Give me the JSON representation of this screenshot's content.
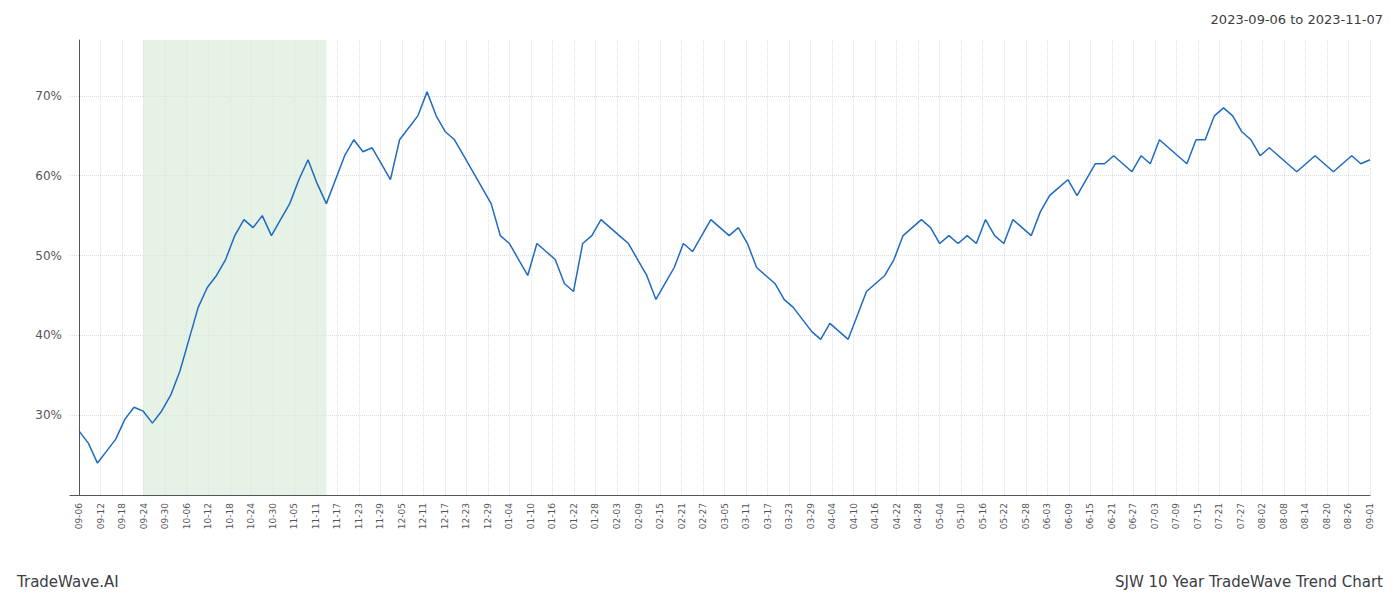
{
  "chart_data": {
    "type": "line",
    "title": "SJW 10 Year TradeWave Trend Chart",
    "subtitle": "2023-09-06 to 2023-11-07",
    "annotations": [
      "TradeWave.AI"
    ],
    "color": "#1f6bbf",
    "highlight_range": [
      7,
      27
    ],
    "highlight_color": "#d6ead6",
    "grid": true,
    "line_style": "solid",
    "ylim": [
      20,
      77
    ],
    "yticks": [
      {
        "value": 30,
        "label": "30%"
      },
      {
        "value": 40,
        "label": "40%"
      },
      {
        "value": 50,
        "label": "50%"
      },
      {
        "value": 60,
        "label": "60%"
      },
      {
        "value": 70,
        "label": "70%"
      }
    ],
    "xlim": [
      -1,
      141
    ],
    "xticks": [
      {
        "value": 0,
        "label": "09-06"
      },
      {
        "value": 2.35,
        "label": "09-12"
      },
      {
        "value": 4.7,
        "label": "09-18"
      },
      {
        "value": 7.05,
        "label": "09-24"
      },
      {
        "value": 9.4,
        "label": "09-30"
      },
      {
        "value": 11.75,
        "label": "10-06"
      },
      {
        "value": 14.1,
        "label": "10-12"
      },
      {
        "value": 16.45,
        "label": "10-18"
      },
      {
        "value": 18.8,
        "label": "10-24"
      },
      {
        "value": 21.15,
        "label": "10-30"
      },
      {
        "value": 23.5,
        "label": "11-05"
      },
      {
        "value": 25.85,
        "label": "11-11"
      },
      {
        "value": 28.2,
        "label": "11-17"
      },
      {
        "value": 30.55,
        "label": "11-23"
      },
      {
        "value": 32.9,
        "label": "11-29"
      },
      {
        "value": 35.25,
        "label": "12-05"
      },
      {
        "value": 37.6,
        "label": "12-11"
      },
      {
        "value": 39.95,
        "label": "12-17"
      },
      {
        "value": 42.3,
        "label": "12-23"
      },
      {
        "value": 44.65,
        "label": "12-29"
      },
      {
        "value": 47,
        "label": "01-04"
      },
      {
        "value": 49.35,
        "label": "01-10"
      },
      {
        "value": 51.7,
        "label": "01-16"
      },
      {
        "value": 54.05,
        "label": "01-22"
      },
      {
        "value": 56.4,
        "label": "01-28"
      },
      {
        "value": 58.75,
        "label": "02-03"
      },
      {
        "value": 61.1,
        "label": "02-09"
      },
      {
        "value": 63.45,
        "label": "02-15"
      },
      {
        "value": 65.8,
        "label": "02-21"
      },
      {
        "value": 68.15,
        "label": "02-27"
      },
      {
        "value": 70.5,
        "label": "03-05"
      },
      {
        "value": 72.85,
        "label": "03-11"
      },
      {
        "value": 75.2,
        "label": "03-17"
      },
      {
        "value": 77.55,
        "label": "03-23"
      },
      {
        "value": 79.9,
        "label": "03-29"
      },
      {
        "value": 82.25,
        "label": "04-04"
      },
      {
        "value": 84.6,
        "label": "04-10"
      },
      {
        "value": 86.95,
        "label": "04-16"
      },
      {
        "value": 89.3,
        "label": "04-22"
      },
      {
        "value": 91.65,
        "label": "04-28"
      },
      {
        "value": 94,
        "label": "05-04"
      },
      {
        "value": 96.35,
        "label": "05-10"
      },
      {
        "value": 98.7,
        "label": "05-16"
      },
      {
        "value": 101.05,
        "label": "05-22"
      },
      {
        "value": 103.4,
        "label": "05-28"
      },
      {
        "value": 105.75,
        "label": "06-03"
      },
      {
        "value": 108.1,
        "label": "06-09"
      },
      {
        "value": 110.45,
        "label": "06-15"
      },
      {
        "value": 112.8,
        "label": "06-21"
      },
      {
        "value": 115.15,
        "label": "06-27"
      },
      {
        "value": 117.5,
        "label": "07-03"
      },
      {
        "value": 119.85,
        "label": "07-09"
      },
      {
        "value": 122.2,
        "label": "07-15"
      },
      {
        "value": 124.55,
        "label": "07-21"
      },
      {
        "value": 126.9,
        "label": "07-27"
      },
      {
        "value": 129.25,
        "label": "08-02"
      },
      {
        "value": 131.6,
        "label": "08-08"
      },
      {
        "value": 133.95,
        "label": "08-14"
      },
      {
        "value": 136.3,
        "label": "08-20"
      },
      {
        "value": 138.65,
        "label": "08-26"
      },
      {
        "value": 141,
        "label": "09-01"
      }
    ],
    "x": [
      0,
      1,
      2,
      3,
      4,
      5,
      6,
      7,
      8,
      9,
      10,
      11,
      12,
      13,
      14,
      15,
      16,
      17,
      18,
      19,
      20,
      21,
      22,
      23,
      24,
      25,
      26,
      27,
      28,
      29,
      30,
      31,
      32,
      33,
      34,
      35,
      36,
      37,
      38,
      39,
      40,
      41,
      42,
      43,
      44,
      45,
      46,
      47,
      48,
      49,
      50,
      51,
      52,
      53,
      54,
      55,
      56,
      57,
      58,
      59,
      60,
      61,
      62,
      63,
      64,
      65,
      66,
      67,
      68,
      69,
      70,
      71,
      72,
      73,
      74,
      75,
      76,
      77,
      78,
      79,
      80,
      81,
      82,
      83,
      84,
      85,
      86,
      87,
      88,
      89,
      90,
      91,
      92,
      93,
      94,
      95,
      96,
      97,
      98,
      99,
      100,
      101,
      102,
      103,
      104,
      105,
      106,
      107,
      108,
      109,
      110,
      111,
      112,
      113,
      114,
      115,
      116,
      117,
      118,
      119,
      120,
      121,
      122,
      123,
      124,
      125,
      126,
      127,
      128,
      129,
      130,
      131,
      132,
      133,
      134,
      135,
      136,
      137,
      138,
      139,
      140,
      141
    ],
    "values": [
      28.0,
      26.5,
      24.0,
      25.5,
      27.0,
      29.5,
      31.0,
      30.5,
      29.0,
      30.5,
      32.5,
      35.5,
      39.5,
      43.5,
      46.0,
      47.5,
      49.5,
      52.5,
      54.5,
      53.5,
      55.0,
      52.5,
      54.5,
      56.5,
      59.5,
      62.0,
      59.0,
      56.5,
      59.5,
      62.5,
      64.5,
      63.0,
      63.5,
      61.5,
      59.5,
      64.5,
      66.0,
      67.5,
      70.5,
      67.5,
      65.5,
      64.5,
      62.5,
      60.5,
      58.5,
      56.5,
      52.5,
      51.5,
      49.5,
      47.5,
      51.5,
      50.5,
      49.5,
      46.5,
      45.5,
      51.5,
      52.5,
      54.5,
      53.5,
      52.5,
      51.5,
      49.5,
      47.5,
      44.5,
      46.5,
      48.5,
      51.5,
      50.5,
      52.5,
      54.5,
      53.5,
      52.5,
      53.5,
      51.5,
      48.5,
      47.5,
      46.5,
      44.5,
      43.5,
      42.0,
      40.5,
      39.5,
      41.5,
      40.5,
      39.5,
      42.5,
      45.5,
      46.5,
      47.5,
      49.5,
      52.5,
      53.5,
      54.5,
      53.5,
      51.5,
      52.5,
      51.5,
      52.5,
      51.5,
      54.5,
      52.5,
      51.5,
      54.5,
      53.5,
      52.5,
      55.5,
      57.5,
      58.5,
      59.5,
      57.5,
      59.5,
      61.5,
      61.5,
      62.5,
      61.5,
      60.5,
      62.5,
      61.5,
      64.5,
      63.5,
      62.5,
      61.5,
      64.5,
      64.5,
      67.5,
      68.5,
      67.5,
      65.5,
      64.5,
      62.5,
      63.5,
      62.5,
      61.5,
      60.5,
      61.5,
      62.5,
      61.5,
      60.5,
      61.5,
      62.5,
      61.5,
      62.0
    ]
  }
}
